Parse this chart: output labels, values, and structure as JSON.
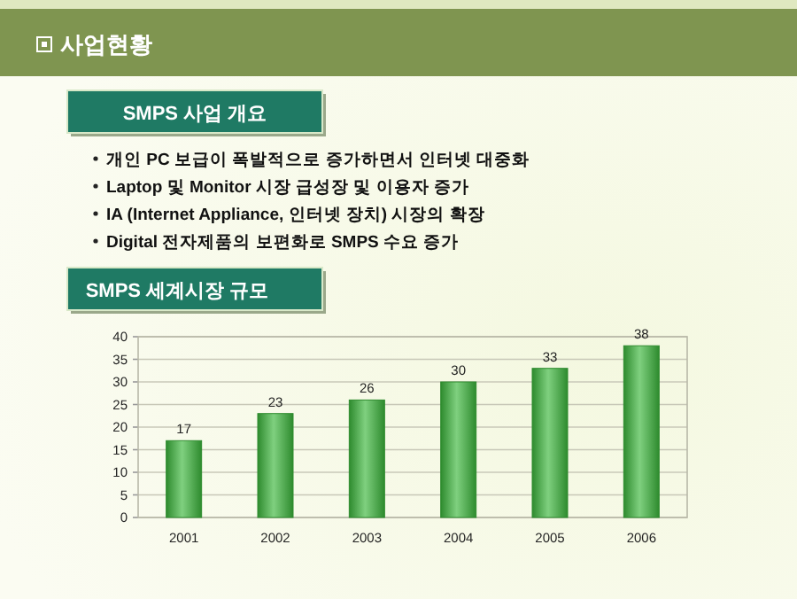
{
  "chart_data": {
    "type": "bar",
    "title": "SMPS 세계시장 규모",
    "annotations": [
      "사업현황",
      "SMPS 사업 개요",
      "개인 PC 보급이 폭발적으로 증가하면서 인터넷 대중화",
      "Laptop 및 Monitor 시장 급성장 및 이용자 증가",
      "IA (Internet Appliance, 인터넷 장치) 시장의 확장",
      "Digital 전자제품의 보편화로 SMPS 수요 증가"
    ],
    "categories": [
      "2001",
      "2002",
      "2003",
      "2004",
      "2005",
      "2006"
    ],
    "values": [
      17,
      23,
      26,
      30,
      33,
      38
    ],
    "color": "#2e8b2e",
    "ylim": [
      0,
      40
    ],
    "yticks": [
      0,
      5,
      10,
      15,
      20,
      25,
      30,
      35,
      40
    ],
    "grid": "y",
    "data_labels": true
  }
}
